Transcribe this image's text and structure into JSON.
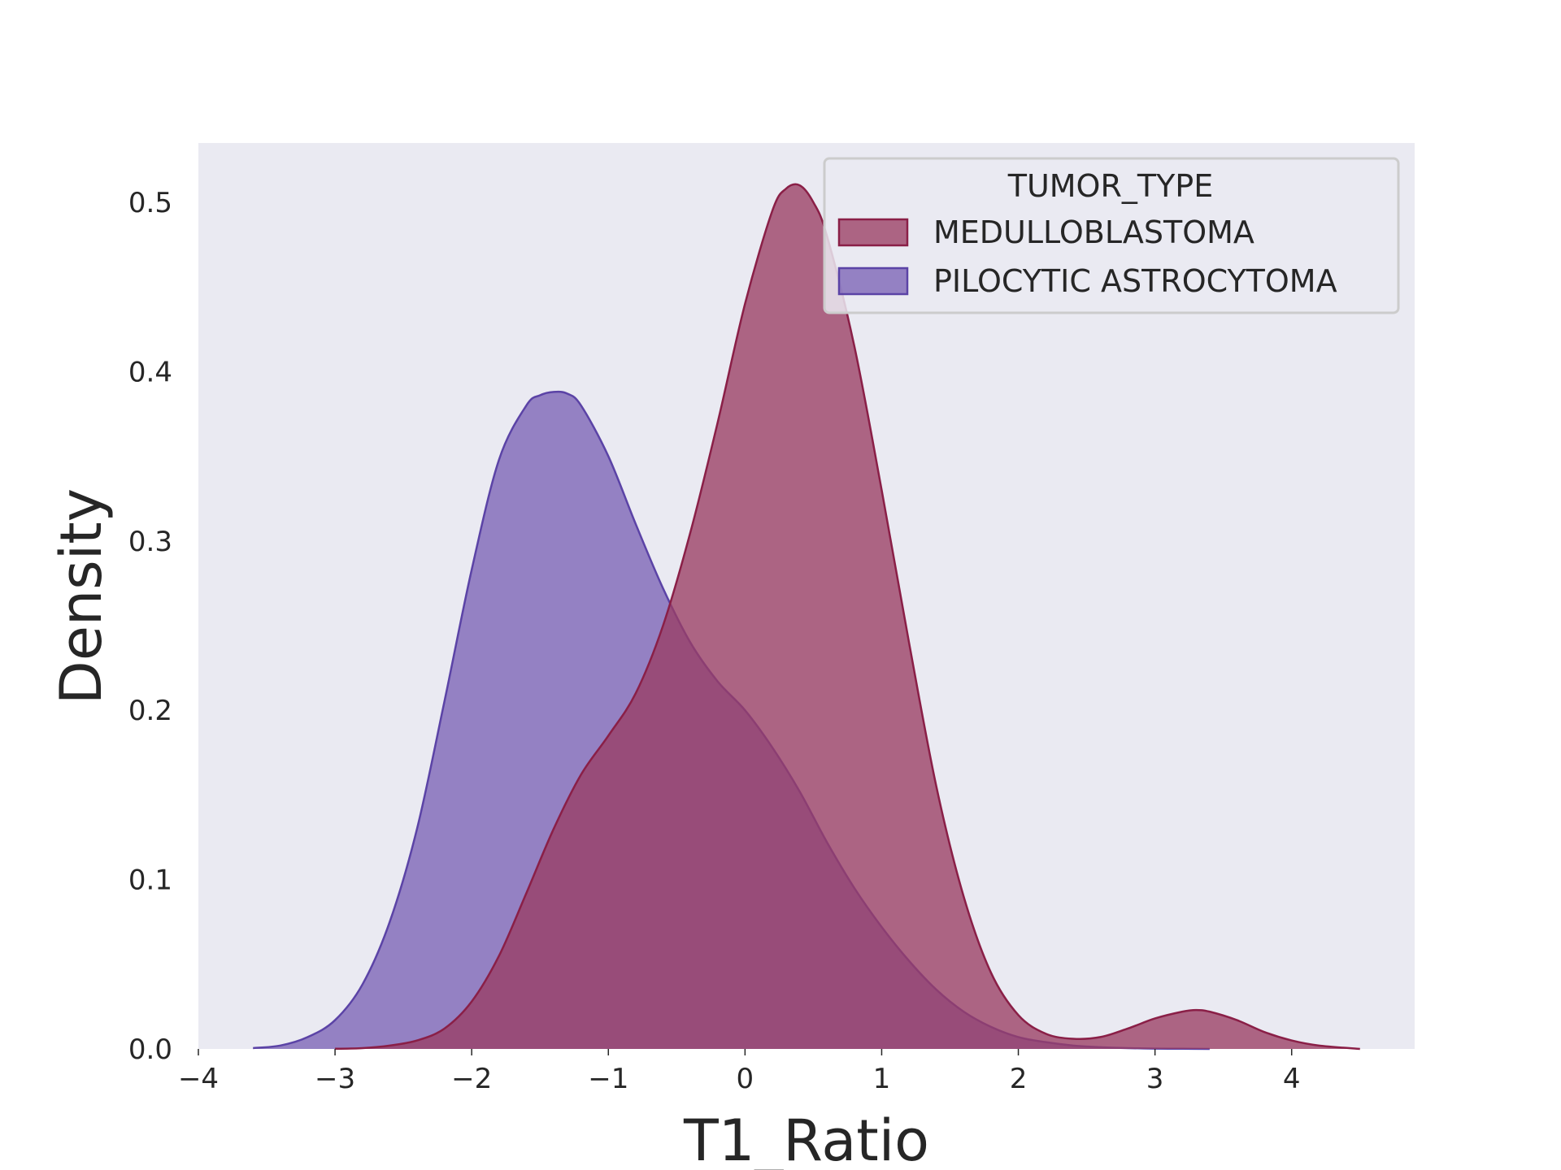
{
  "chart_data": {
    "type": "area",
    "title": "",
    "xlabel": "T1_Ratio",
    "ylabel": "Density",
    "xlim": [
      -4,
      4.9
    ],
    "ylim": [
      0,
      0.535
    ],
    "grid": false,
    "x_ticks": [
      -4,
      -3,
      -2,
      -1,
      0,
      1,
      2,
      3,
      4
    ],
    "x_tick_labels": [
      "−4",
      "−3",
      "−2",
      "−1",
      "0",
      "1",
      "2",
      "3",
      "4"
    ],
    "y_ticks": [
      0.0,
      0.1,
      0.2,
      0.3,
      0.4,
      0.5
    ],
    "y_tick_labels": [
      "0.0",
      "0.1",
      "0.2",
      "0.3",
      "0.4",
      "0.5"
    ],
    "legend": {
      "title": "TUMOR_TYPE",
      "placement": "top-right"
    },
    "series": [
      {
        "name": "PILOCYTIC ASTROCYTOMA",
        "color": "#5b43a6",
        "fill": "#7b63b6",
        "x": [
          -3.6,
          -3.4,
          -3.2,
          -3.0,
          -2.8,
          -2.6,
          -2.4,
          -2.2,
          -2.0,
          -1.8,
          -1.6,
          -1.5,
          -1.4,
          -1.3,
          -1.2,
          -1.0,
          -0.8,
          -0.6,
          -0.4,
          -0.2,
          0.0,
          0.2,
          0.4,
          0.6,
          0.8,
          1.0,
          1.2,
          1.4,
          1.6,
          1.8,
          2.0,
          2.2,
          2.4,
          2.6,
          2.8,
          3.0,
          3.2,
          3.4
        ],
        "y": [
          0.0005,
          0.002,
          0.007,
          0.017,
          0.038,
          0.075,
          0.13,
          0.205,
          0.283,
          0.348,
          0.38,
          0.386,
          0.388,
          0.387,
          0.38,
          0.35,
          0.31,
          0.272,
          0.24,
          0.217,
          0.2,
          0.178,
          0.152,
          0.122,
          0.095,
          0.072,
          0.052,
          0.035,
          0.022,
          0.013,
          0.007,
          0.004,
          0.002,
          0.001,
          0.0005,
          0.0002,
          0.0001,
          0.0
        ]
      },
      {
        "name": "MEDULLOBLASTOMA",
        "color": "#8a1f47",
        "fill": "#9a3e64",
        "x": [
          -3.0,
          -2.8,
          -2.6,
          -2.4,
          -2.2,
          -2.0,
          -1.8,
          -1.6,
          -1.4,
          -1.2,
          -1.0,
          -0.8,
          -0.6,
          -0.4,
          -0.2,
          0.0,
          0.2,
          0.3,
          0.4,
          0.5,
          0.6,
          0.8,
          1.0,
          1.2,
          1.4,
          1.6,
          1.8,
          2.0,
          2.2,
          2.4,
          2.6,
          2.8,
          3.0,
          3.2,
          3.3,
          3.4,
          3.6,
          3.8,
          4.0,
          4.2,
          4.5
        ],
        "y": [
          0.0001,
          0.0005,
          0.002,
          0.005,
          0.012,
          0.028,
          0.055,
          0.092,
          0.13,
          0.162,
          0.185,
          0.21,
          0.25,
          0.305,
          0.37,
          0.44,
          0.495,
          0.508,
          0.51,
          0.5,
          0.48,
          0.415,
          0.33,
          0.24,
          0.155,
          0.09,
          0.045,
          0.02,
          0.009,
          0.006,
          0.007,
          0.012,
          0.018,
          0.022,
          0.023,
          0.022,
          0.017,
          0.01,
          0.005,
          0.002,
          0.0
        ]
      }
    ]
  }
}
